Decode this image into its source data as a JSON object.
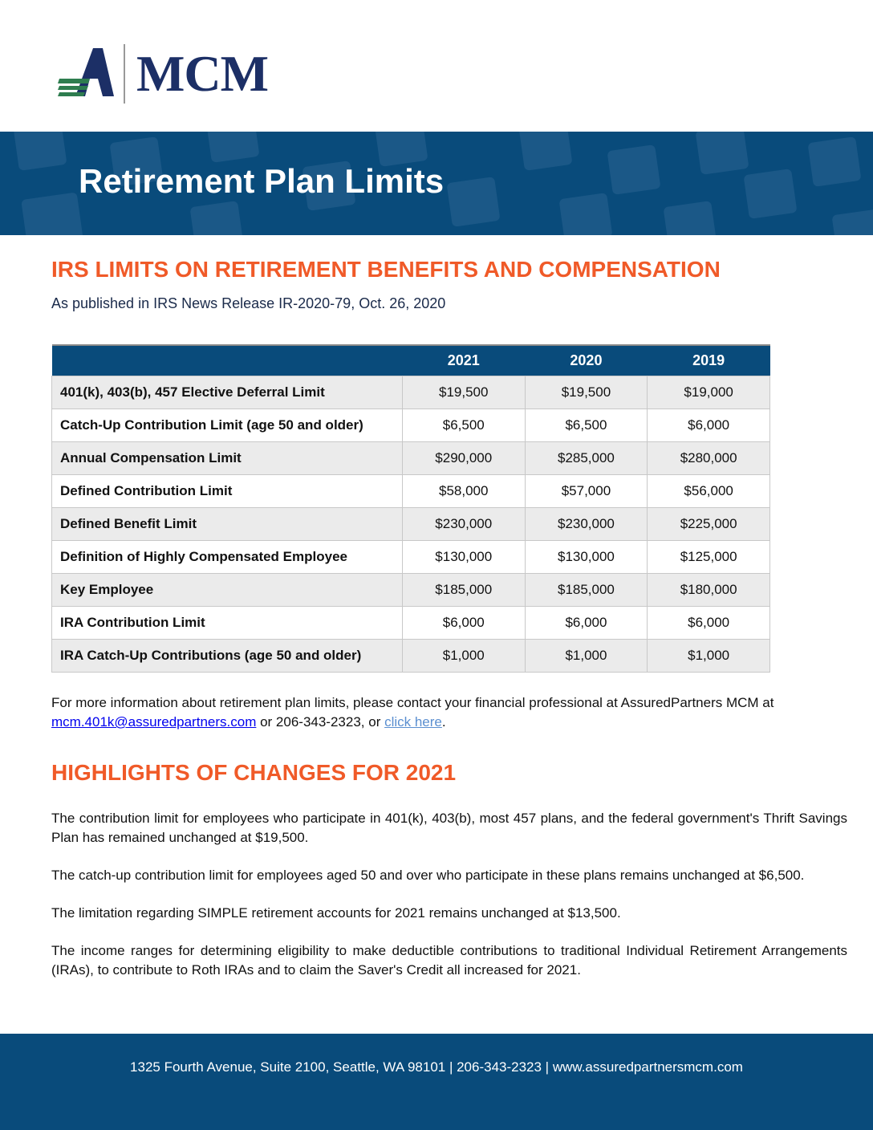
{
  "logo": {
    "text": "MCM",
    "colors": {
      "navy": "#1c2f66",
      "green": "#2e7d4f"
    }
  },
  "banner": {
    "title": "Retirement Plan Limits",
    "color": "#094b7b"
  },
  "section1": {
    "heading": "IRS LIMITS ON RETIREMENT BENEFITS AND COMPENSATION",
    "subheading": "As published in IRS News Release IR-2020-79, Oct. 26, 2020"
  },
  "table": {
    "columns": [
      "",
      "2021",
      "2020",
      "2019"
    ],
    "rows": [
      {
        "label": "401(k), 403(b), 457 Elective Deferral Limit",
        "values": [
          "$19,500",
          "$19,500",
          "$19,000"
        ]
      },
      {
        "label": "Catch-Up Contribution Limit (age 50 and older)",
        "values": [
          "$6,500",
          "$6,500",
          "$6,000"
        ]
      },
      {
        "label": "Annual Compensation Limit",
        "values": [
          "$290,000",
          "$285,000",
          "$280,000"
        ]
      },
      {
        "label": "Defined Contribution Limit",
        "values": [
          "$58,000",
          "$57,000",
          "$56,000"
        ]
      },
      {
        "label": "Defined Benefit Limit",
        "values": [
          "$230,000",
          "$230,000",
          "$225,000"
        ]
      },
      {
        "label": "Definition of Highly Compensated Employee",
        "values": [
          "$130,000",
          "$130,000",
          "$125,000"
        ]
      },
      {
        "label": "Key Employee",
        "values": [
          "$185,000",
          "$185,000",
          "$180,000"
        ]
      },
      {
        "label": "IRA Contribution Limit",
        "values": [
          "$6,000",
          "$6,000",
          "$6,000"
        ]
      },
      {
        "label": "IRA Catch-Up Contributions (age 50 and older)",
        "values": [
          "$1,000",
          "$1,000",
          "$1,000"
        ]
      }
    ]
  },
  "contact": {
    "text_before": "For more information about retirement plan limits, please contact your financial professional at AssuredPartners MCM at ",
    "email": "mcm.401k@assuredpartners.com",
    "text_middle": " or 206-343-2323, or ",
    "link": "click here",
    "text_after": "."
  },
  "section2": {
    "heading": "HIGHLIGHTS OF CHANGES FOR 2021",
    "paragraphs": [
      "The contribution limit for employees who participate in 401(k), 403(b), most 457 plans, and the federal government's Thrift Savings Plan has remained unchanged at $19,500.",
      "The catch-up contribution limit for employees aged 50 and over who participate in these plans remains unchanged at $6,500.",
      "The limitation regarding SIMPLE retirement accounts for 2021 remains unchanged at $13,500.",
      "The income ranges for determining eligibility to make deductible contributions to traditional Individual Retirement Arrangements (IRAs), to contribute to Roth IRAs and to claim the Saver's Credit all increased for 2021."
    ]
  },
  "footer": {
    "text": "1325 Fourth Avenue, Suite 2100, Seattle, WA 98101 | 206-343-2323 | www.assuredpartnersmcm.com"
  },
  "accent_color": "#f05a28"
}
